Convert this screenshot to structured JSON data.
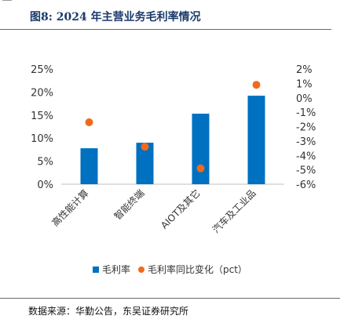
{
  "figure": {
    "title": "图8:  2024 年主营业务毛利率情况",
    "source": "数据来源：华勤公告，东吴证券研究所"
  },
  "colors": {
    "bar": "#0070c0",
    "dot": "#f06a1e",
    "title": "#1a3a6b"
  },
  "chart_data": {
    "type": "bar",
    "categories": [
      "高性能计算",
      "智能终端",
      "AIOT及其它",
      "汽车及工业品"
    ],
    "series": [
      {
        "name": "毛利率",
        "type": "bar",
        "axis": "left",
        "values": [
          7.8,
          9.0,
          15.3,
          19.2
        ]
      },
      {
        "name": "毛利率同比变化（pct）",
        "type": "scatter",
        "axis": "right",
        "values": [
          -1.7,
          -3.4,
          -4.9,
          0.9
        ]
      }
    ],
    "ylim_left": [
      0,
      25
    ],
    "yticks_left": [
      "0%",
      "5%",
      "10%",
      "15%",
      "20%",
      "25%"
    ],
    "ylim_right": [
      -6,
      2
    ],
    "yticks_right": [
      "-6%",
      "-5%",
      "-4%",
      "-3%",
      "-2%",
      "-1%",
      "0%",
      "1%",
      "2%"
    ],
    "legend_position": "bottom"
  }
}
